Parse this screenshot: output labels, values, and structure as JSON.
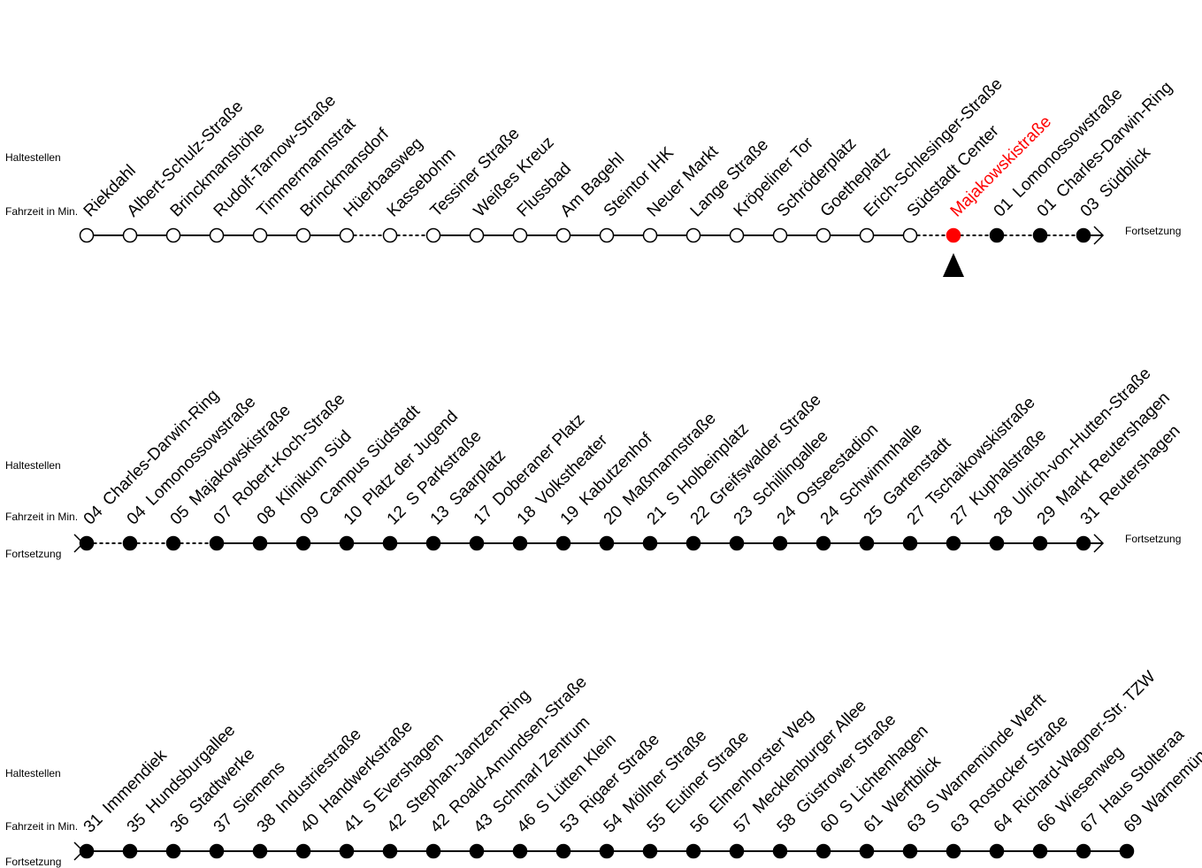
{
  "labels": {
    "stops": "Haltestellen",
    "travel_time": "Fahrzeit in Min.",
    "continuation": "Fortsetzung"
  },
  "colors": {
    "current_stop": "#ff0000",
    "line": "#000000",
    "open_stop_fill": "#ffffff",
    "next_stop_fill": "#000000"
  },
  "current_marker_icon": "triangle-up-icon",
  "rows": [
    {
      "continued_from_previous": false,
      "continues": true,
      "stops": [
        {
          "time": "",
          "name": "Riekdahl",
          "state": "past",
          "dashed_after": false
        },
        {
          "time": "",
          "name": "Albert-Schulz-Straße",
          "state": "past",
          "dashed_after": false
        },
        {
          "time": "",
          "name": "Brinckmanshöhe",
          "state": "past",
          "dashed_after": false
        },
        {
          "time": "",
          "name": "Rudolf-Tarnow-Straße",
          "state": "past",
          "dashed_after": false
        },
        {
          "time": "",
          "name": "Timmermannstrat",
          "state": "past",
          "dashed_after": false
        },
        {
          "time": "",
          "name": "Brinckmansdorf",
          "state": "past",
          "dashed_after": false
        },
        {
          "time": "",
          "name": "Hüerbaasweg",
          "state": "past",
          "dashed_after": true
        },
        {
          "time": "",
          "name": "Kassebohm",
          "state": "past",
          "dashed_after": true
        },
        {
          "time": "",
          "name": "Tessiner Straße",
          "state": "past",
          "dashed_after": false
        },
        {
          "time": "",
          "name": "Weißes Kreuz",
          "state": "past",
          "dashed_after": false
        },
        {
          "time": "",
          "name": "Flussbad",
          "state": "past",
          "dashed_after": false
        },
        {
          "time": "",
          "name": "Am Bagehl",
          "state": "past",
          "dashed_after": false
        },
        {
          "time": "",
          "name": "Steintor IHK",
          "state": "past",
          "dashed_after": false
        },
        {
          "time": "",
          "name": "Neuer Markt",
          "state": "past",
          "dashed_after": false
        },
        {
          "time": "",
          "name": "Lange Straße",
          "state": "past",
          "dashed_after": false
        },
        {
          "time": "",
          "name": "Kröpeliner Tor",
          "state": "past",
          "dashed_after": false
        },
        {
          "time": "",
          "name": "Schröderplatz",
          "state": "past",
          "dashed_after": false
        },
        {
          "time": "",
          "name": "Goetheplatz",
          "state": "past",
          "dashed_after": false
        },
        {
          "time": "",
          "name": "Erich-Schlesinger-Straße",
          "state": "past",
          "dashed_after": false
        },
        {
          "time": "",
          "name": "Südstadt Center",
          "state": "past",
          "dashed_after": true
        },
        {
          "time": "",
          "name": "Majakowskistraße",
          "state": "current",
          "dashed_after": true
        },
        {
          "time": "01",
          "name": "Lomonossowstraße",
          "state": "next",
          "dashed_after": true
        },
        {
          "time": "01",
          "name": "Charles-Darwin-Ring",
          "state": "next",
          "dashed_after": true
        },
        {
          "time": "03",
          "name": "Südblick",
          "state": "next",
          "dashed_after": false
        }
      ]
    },
    {
      "continued_from_previous": true,
      "continues": true,
      "stops": [
        {
          "time": "04",
          "name": "Charles-Darwin-Ring",
          "state": "next",
          "dashed_after": true
        },
        {
          "time": "04",
          "name": "Lomonossowstraße",
          "state": "next",
          "dashed_after": true
        },
        {
          "time": "05",
          "name": "Majakowskistraße",
          "state": "next",
          "dashed_after": true
        },
        {
          "time": "07",
          "name": "Robert-Koch-Straße",
          "state": "next",
          "dashed_after": false
        },
        {
          "time": "08",
          "name": "Klinikum Süd",
          "state": "next",
          "dashed_after": false
        },
        {
          "time": "09",
          "name": "Campus Südstadt",
          "state": "next",
          "dashed_after": false
        },
        {
          "time": "10",
          "name": "Platz der Jugend",
          "state": "next",
          "dashed_after": false
        },
        {
          "time": "12",
          "name": "S Parkstraße",
          "state": "next",
          "dashed_after": false
        },
        {
          "time": "13",
          "name": "Saarplatz",
          "state": "next",
          "dashed_after": false
        },
        {
          "time": "17",
          "name": "Doberaner Platz",
          "state": "next",
          "dashed_after": false
        },
        {
          "time": "18",
          "name": "Volkstheater",
          "state": "next",
          "dashed_after": false
        },
        {
          "time": "19",
          "name": "Kabutzenhof",
          "state": "next",
          "dashed_after": false
        },
        {
          "time": "20",
          "name": "Maßmannstraße",
          "state": "next",
          "dashed_after": false
        },
        {
          "time": "21",
          "name": "S Holbeinplatz",
          "state": "next",
          "dashed_after": false
        },
        {
          "time": "22",
          "name": "Greifswalder Straße",
          "state": "next",
          "dashed_after": false
        },
        {
          "time": "23",
          "name": "Schillingallee",
          "state": "next",
          "dashed_after": false
        },
        {
          "time": "24",
          "name": "Ostseestadion",
          "state": "next",
          "dashed_after": false
        },
        {
          "time": "24",
          "name": "Schwimmhalle",
          "state": "next",
          "dashed_after": false
        },
        {
          "time": "25",
          "name": "Gartenstadt",
          "state": "next",
          "dashed_after": false
        },
        {
          "time": "27",
          "name": "Tschaikowskistraße",
          "state": "next",
          "dashed_after": false
        },
        {
          "time": "27",
          "name": "Kuphalstraße",
          "state": "next",
          "dashed_after": false
        },
        {
          "time": "28",
          "name": "Ulrich-von-Hutten-Straße",
          "state": "next",
          "dashed_after": false
        },
        {
          "time": "29",
          "name": "Markt Reutershagen",
          "state": "next",
          "dashed_after": false
        },
        {
          "time": "31",
          "name": "Reutershagen",
          "state": "next",
          "dashed_after": false
        }
      ]
    },
    {
      "continued_from_previous": true,
      "continues": false,
      "stops": [
        {
          "time": "31",
          "name": "Immendiek",
          "state": "next",
          "dashed_after": false
        },
        {
          "time": "35",
          "name": "Hundsburgallee",
          "state": "next",
          "dashed_after": false
        },
        {
          "time": "36",
          "name": "Stadtwerke",
          "state": "next",
          "dashed_after": false
        },
        {
          "time": "37",
          "name": "Siemens",
          "state": "next",
          "dashed_after": false
        },
        {
          "time": "38",
          "name": "Industriestraße",
          "state": "next",
          "dashed_after": false
        },
        {
          "time": "40",
          "name": "Handwerkstraße",
          "state": "next",
          "dashed_after": false
        },
        {
          "time": "41",
          "name": "S Evershagen",
          "state": "next",
          "dashed_after": false
        },
        {
          "time": "42",
          "name": "Stephan-Jantzen-Ring",
          "state": "next",
          "dashed_after": false
        },
        {
          "time": "42",
          "name": "Roald-Amundsen-Straße",
          "state": "next",
          "dashed_after": false
        },
        {
          "time": "43",
          "name": "Schmarl Zentrum",
          "state": "next",
          "dashed_after": false
        },
        {
          "time": "46",
          "name": "S Lütten Klein",
          "state": "next",
          "dashed_after": false
        },
        {
          "time": "53",
          "name": "Rigaer Straße",
          "state": "next",
          "dashed_after": false
        },
        {
          "time": "54",
          "name": "Möllner Straße",
          "state": "next",
          "dashed_after": false
        },
        {
          "time": "55",
          "name": "Eutiner Straße",
          "state": "next",
          "dashed_after": false
        },
        {
          "time": "56",
          "name": "Elmenhorster Weg",
          "state": "next",
          "dashed_after": false
        },
        {
          "time": "57",
          "name": "Mecklenburger Allee",
          "state": "next",
          "dashed_after": false
        },
        {
          "time": "58",
          "name": "Güstrower Straße",
          "state": "next",
          "dashed_after": false
        },
        {
          "time": "60",
          "name": "S Lichtenhagen",
          "state": "next",
          "dashed_after": false
        },
        {
          "time": "61",
          "name": "Werftblick",
          "state": "next",
          "dashed_after": false
        },
        {
          "time": "63",
          "name": "S Warnemünde Werft",
          "state": "next",
          "dashed_after": false
        },
        {
          "time": "63",
          "name": "Rostocker Straße",
          "state": "next",
          "dashed_after": false
        },
        {
          "time": "64",
          "name": "Richard-Wagner-Str. TZW",
          "state": "next",
          "dashed_after": false
        },
        {
          "time": "66",
          "name": "Wiesenweg",
          "state": "next",
          "dashed_after": false
        },
        {
          "time": "67",
          "name": "Haus Stolteraa",
          "state": "next",
          "dashed_after": false
        },
        {
          "time": "69",
          "name": "Warnemünde",
          "state": "next",
          "dashed_after": false
        }
      ]
    }
  ]
}
